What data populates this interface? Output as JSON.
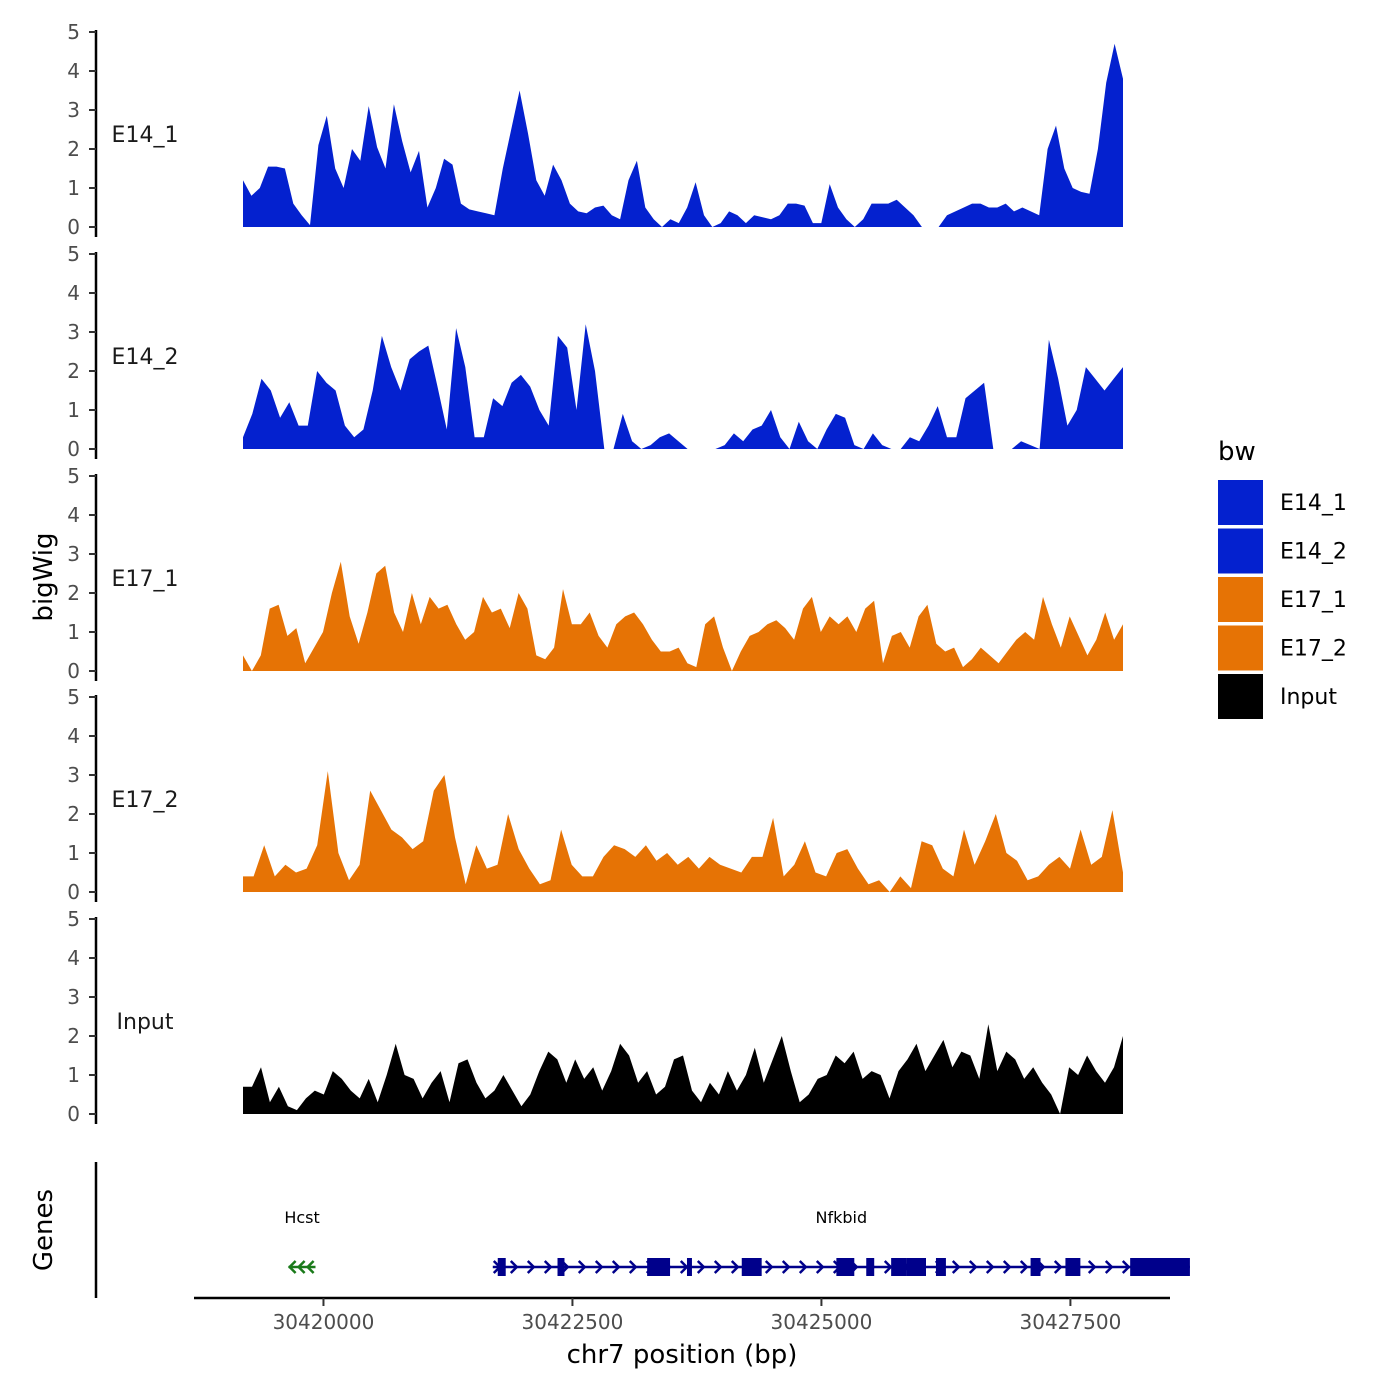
{
  "chart_data": {
    "type": "area",
    "title": "",
    "ylabel": "bigWig",
    "xlabel": "chr7 position (bp)",
    "genes_label": "Genes",
    "ylim": [
      0,
      5
    ],
    "yticks": [
      0,
      1,
      2,
      3,
      4,
      5
    ],
    "xlim": [
      30418700,
      30428500
    ],
    "xticks": [
      30420000,
      30422500,
      30425000,
      30427500
    ],
    "xtick_labels": [
      "30420000",
      "30422500",
      "30425000",
      "30427500"
    ],
    "region": [
      30419750,
      30428700
    ],
    "legend": {
      "title": "bw",
      "placement": "right",
      "entries": [
        {
          "label": "E14_1",
          "color": "#0421cf"
        },
        {
          "label": "E14_2",
          "color": "#0421cf"
        },
        {
          "label": "E17_1",
          "color": "#e67305"
        },
        {
          "label": "E17_2",
          "color": "#e67305"
        },
        {
          "label": "Input",
          "color": "#000000"
        }
      ]
    },
    "series": [
      {
        "name": "E14_1",
        "color": "#0421cf",
        "values": [
          1.2,
          0.8,
          1.0,
          1.55,
          1.55,
          1.5,
          0.6,
          0.3,
          0.05,
          2.1,
          2.85,
          1.5,
          1.0,
          2.0,
          1.7,
          3.1,
          2.05,
          1.5,
          3.15,
          2.2,
          1.4,
          1.95,
          0.5,
          1.0,
          1.75,
          1.6,
          0.6,
          0.45,
          0.4,
          0.35,
          0.3,
          1.5,
          2.5,
          3.5,
          2.4,
          1.2,
          0.8,
          1.6,
          1.2,
          0.6,
          0.4,
          0.35,
          0.5,
          0.55,
          0.3,
          0.2,
          1.2,
          1.7,
          0.5,
          0.2,
          0.0,
          0.2,
          0.1,
          0.5,
          1.15,
          0.3,
          0.0,
          0.1,
          0.4,
          0.3,
          0.1,
          0.3,
          0.25,
          0.2,
          0.3,
          0.6,
          0.6,
          0.55,
          0.1,
          0.1,
          1.1,
          0.5,
          0.2,
          0.0,
          0.2,
          0.6,
          0.6,
          0.6,
          0.7,
          0.5,
          0.3,
          0.0,
          0.0,
          0.0,
          0.3,
          0.4,
          0.5,
          0.6,
          0.6,
          0.5,
          0.5,
          0.6,
          0.4,
          0.5,
          0.4,
          0.3,
          2.0,
          2.6,
          1.5,
          1.0,
          0.9,
          0.85,
          2.0,
          3.7,
          4.7,
          3.8
        ]
      },
      {
        "name": "E14_2",
        "color": "#0421cf",
        "values": [
          0.3,
          0.9,
          1.8,
          1.5,
          0.8,
          1.2,
          0.6,
          0.6,
          2.0,
          1.7,
          1.5,
          0.6,
          0.3,
          0.5,
          1.5,
          2.9,
          2.1,
          1.5,
          2.3,
          2.5,
          2.65,
          1.6,
          0.5,
          3.1,
          2.1,
          0.3,
          0.3,
          1.3,
          1.1,
          1.7,
          1.9,
          1.6,
          1.0,
          0.6,
          2.9,
          2.6,
          1.0,
          3.2,
          2.0,
          0.0,
          0.0,
          0.9,
          0.2,
          0.0,
          0.1,
          0.3,
          0.4,
          0.2,
          0.0,
          0.0,
          0.0,
          0.0,
          0.1,
          0.4,
          0.2,
          0.5,
          0.6,
          1.0,
          0.3,
          0.0,
          0.7,
          0.2,
          0.0,
          0.5,
          0.9,
          0.8,
          0.1,
          0.0,
          0.4,
          0.1,
          0.0,
          0.0,
          0.3,
          0.2,
          0.6,
          1.1,
          0.3,
          0.3,
          1.3,
          1.5,
          1.7,
          0.0,
          0.0,
          0.0,
          0.2,
          0.1,
          0.0,
          2.8,
          1.8,
          0.6,
          1.0,
          2.1,
          1.8,
          1.5,
          1.8,
          2.1
        ]
      },
      {
        "name": "E17_1",
        "color": "#e67305",
        "values": [
          0.4,
          0.0,
          0.4,
          1.6,
          1.7,
          0.9,
          1.1,
          0.2,
          0.6,
          1.0,
          2.0,
          2.8,
          1.4,
          0.7,
          1.5,
          2.5,
          2.7,
          1.5,
          1.0,
          2.0,
          1.2,
          1.9,
          1.6,
          1.7,
          1.2,
          0.8,
          1.0,
          1.9,
          1.5,
          1.6,
          1.1,
          2.0,
          1.6,
          0.4,
          0.3,
          0.6,
          2.1,
          1.2,
          1.2,
          1.5,
          0.9,
          0.6,
          1.2,
          1.4,
          1.5,
          1.2,
          0.8,
          0.5,
          0.5,
          0.6,
          0.2,
          0.1,
          1.2,
          1.4,
          0.6,
          0.0,
          0.5,
          0.9,
          1.0,
          1.2,
          1.3,
          1.1,
          0.8,
          1.6,
          1.9,
          1.0,
          1.4,
          1.2,
          1.4,
          1.0,
          1.6,
          1.8,
          0.2,
          0.9,
          1.0,
          0.6,
          1.4,
          1.7,
          0.7,
          0.5,
          0.6,
          0.1,
          0.3,
          0.6,
          0.4,
          0.2,
          0.5,
          0.8,
          1.0,
          0.8,
          1.9,
          1.2,
          0.6,
          1.4,
          0.9,
          0.4,
          0.8,
          1.5,
          0.8,
          1.2
        ]
      },
      {
        "name": "E17_2",
        "color": "#e67305",
        "values": [
          0.4,
          0.4,
          1.2,
          0.4,
          0.7,
          0.5,
          0.6,
          1.2,
          3.1,
          1.0,
          0.3,
          0.7,
          2.6,
          2.1,
          1.6,
          1.4,
          1.1,
          1.3,
          2.6,
          3.0,
          1.4,
          0.2,
          1.2,
          0.6,
          0.7,
          2.0,
          1.1,
          0.6,
          0.2,
          0.3,
          1.6,
          0.7,
          0.4,
          0.4,
          0.9,
          1.2,
          1.1,
          0.9,
          1.2,
          0.8,
          1.0,
          0.7,
          0.9,
          0.6,
          0.9,
          0.7,
          0.6,
          0.5,
          0.9,
          0.9,
          1.9,
          0.4,
          0.7,
          1.3,
          0.5,
          0.4,
          1.0,
          1.1,
          0.6,
          0.2,
          0.3,
          0.0,
          0.4,
          0.1,
          1.3,
          1.2,
          0.6,
          0.4,
          1.6,
          0.7,
          1.3,
          2.0,
          1.0,
          0.8,
          0.3,
          0.4,
          0.7,
          0.9,
          0.6,
          1.6,
          0.7,
          0.9,
          2.1,
          0.5
        ]
      },
      {
        "name": "Input",
        "color": "#000000",
        "values": [
          0.7,
          0.7,
          1.2,
          0.3,
          0.7,
          0.2,
          0.1,
          0.4,
          0.6,
          0.5,
          1.1,
          0.9,
          0.6,
          0.4,
          0.9,
          0.3,
          1.0,
          1.8,
          1.0,
          0.9,
          0.4,
          0.8,
          1.1,
          0.3,
          1.3,
          1.4,
          0.8,
          0.4,
          0.6,
          1.0,
          0.6,
          0.2,
          0.5,
          1.1,
          1.6,
          1.4,
          0.8,
          1.4,
          0.9,
          1.2,
          0.6,
          1.1,
          1.8,
          1.5,
          0.8,
          1.1,
          0.5,
          0.7,
          1.4,
          1.5,
          0.6,
          0.3,
          0.8,
          0.5,
          1.1,
          0.6,
          1.0,
          1.7,
          0.8,
          1.4,
          2.0,
          1.1,
          0.3,
          0.5,
          0.9,
          1.0,
          1.5,
          1.3,
          1.6,
          0.9,
          1.1,
          1.0,
          0.4,
          1.1,
          1.4,
          1.8,
          1.1,
          1.5,
          1.9,
          1.2,
          1.6,
          1.5,
          0.9,
          2.3,
          1.1,
          1.6,
          1.4,
          0.9,
          1.2,
          0.8,
          0.5,
          0.0,
          1.2,
          1.0,
          1.5,
          1.1,
          0.8,
          1.2,
          2.0
        ]
      }
    ],
    "genes": [
      {
        "name": "Hcst",
        "start": 30419650,
        "end": 30419920,
        "strand": "-",
        "color": "#1a7a1a",
        "exons": []
      },
      {
        "name": "Nfkbid",
        "start": 30421700,
        "end": 30428700,
        "strand": "+",
        "color": "#00008b",
        "exons": [
          [
            30421750,
            30421830
          ],
          [
            30422350,
            30422420
          ],
          [
            30423250,
            30423480
          ],
          [
            30423650,
            30423700
          ],
          [
            30424200,
            30424400
          ],
          [
            30425150,
            30425330
          ],
          [
            30425450,
            30425530
          ],
          [
            30425700,
            30425850
          ],
          [
            30425850,
            30426050
          ],
          [
            30426150,
            30426250
          ],
          [
            30427100,
            30427200
          ],
          [
            30427450,
            30427600
          ],
          [
            30428100,
            30428700
          ]
        ]
      }
    ]
  }
}
